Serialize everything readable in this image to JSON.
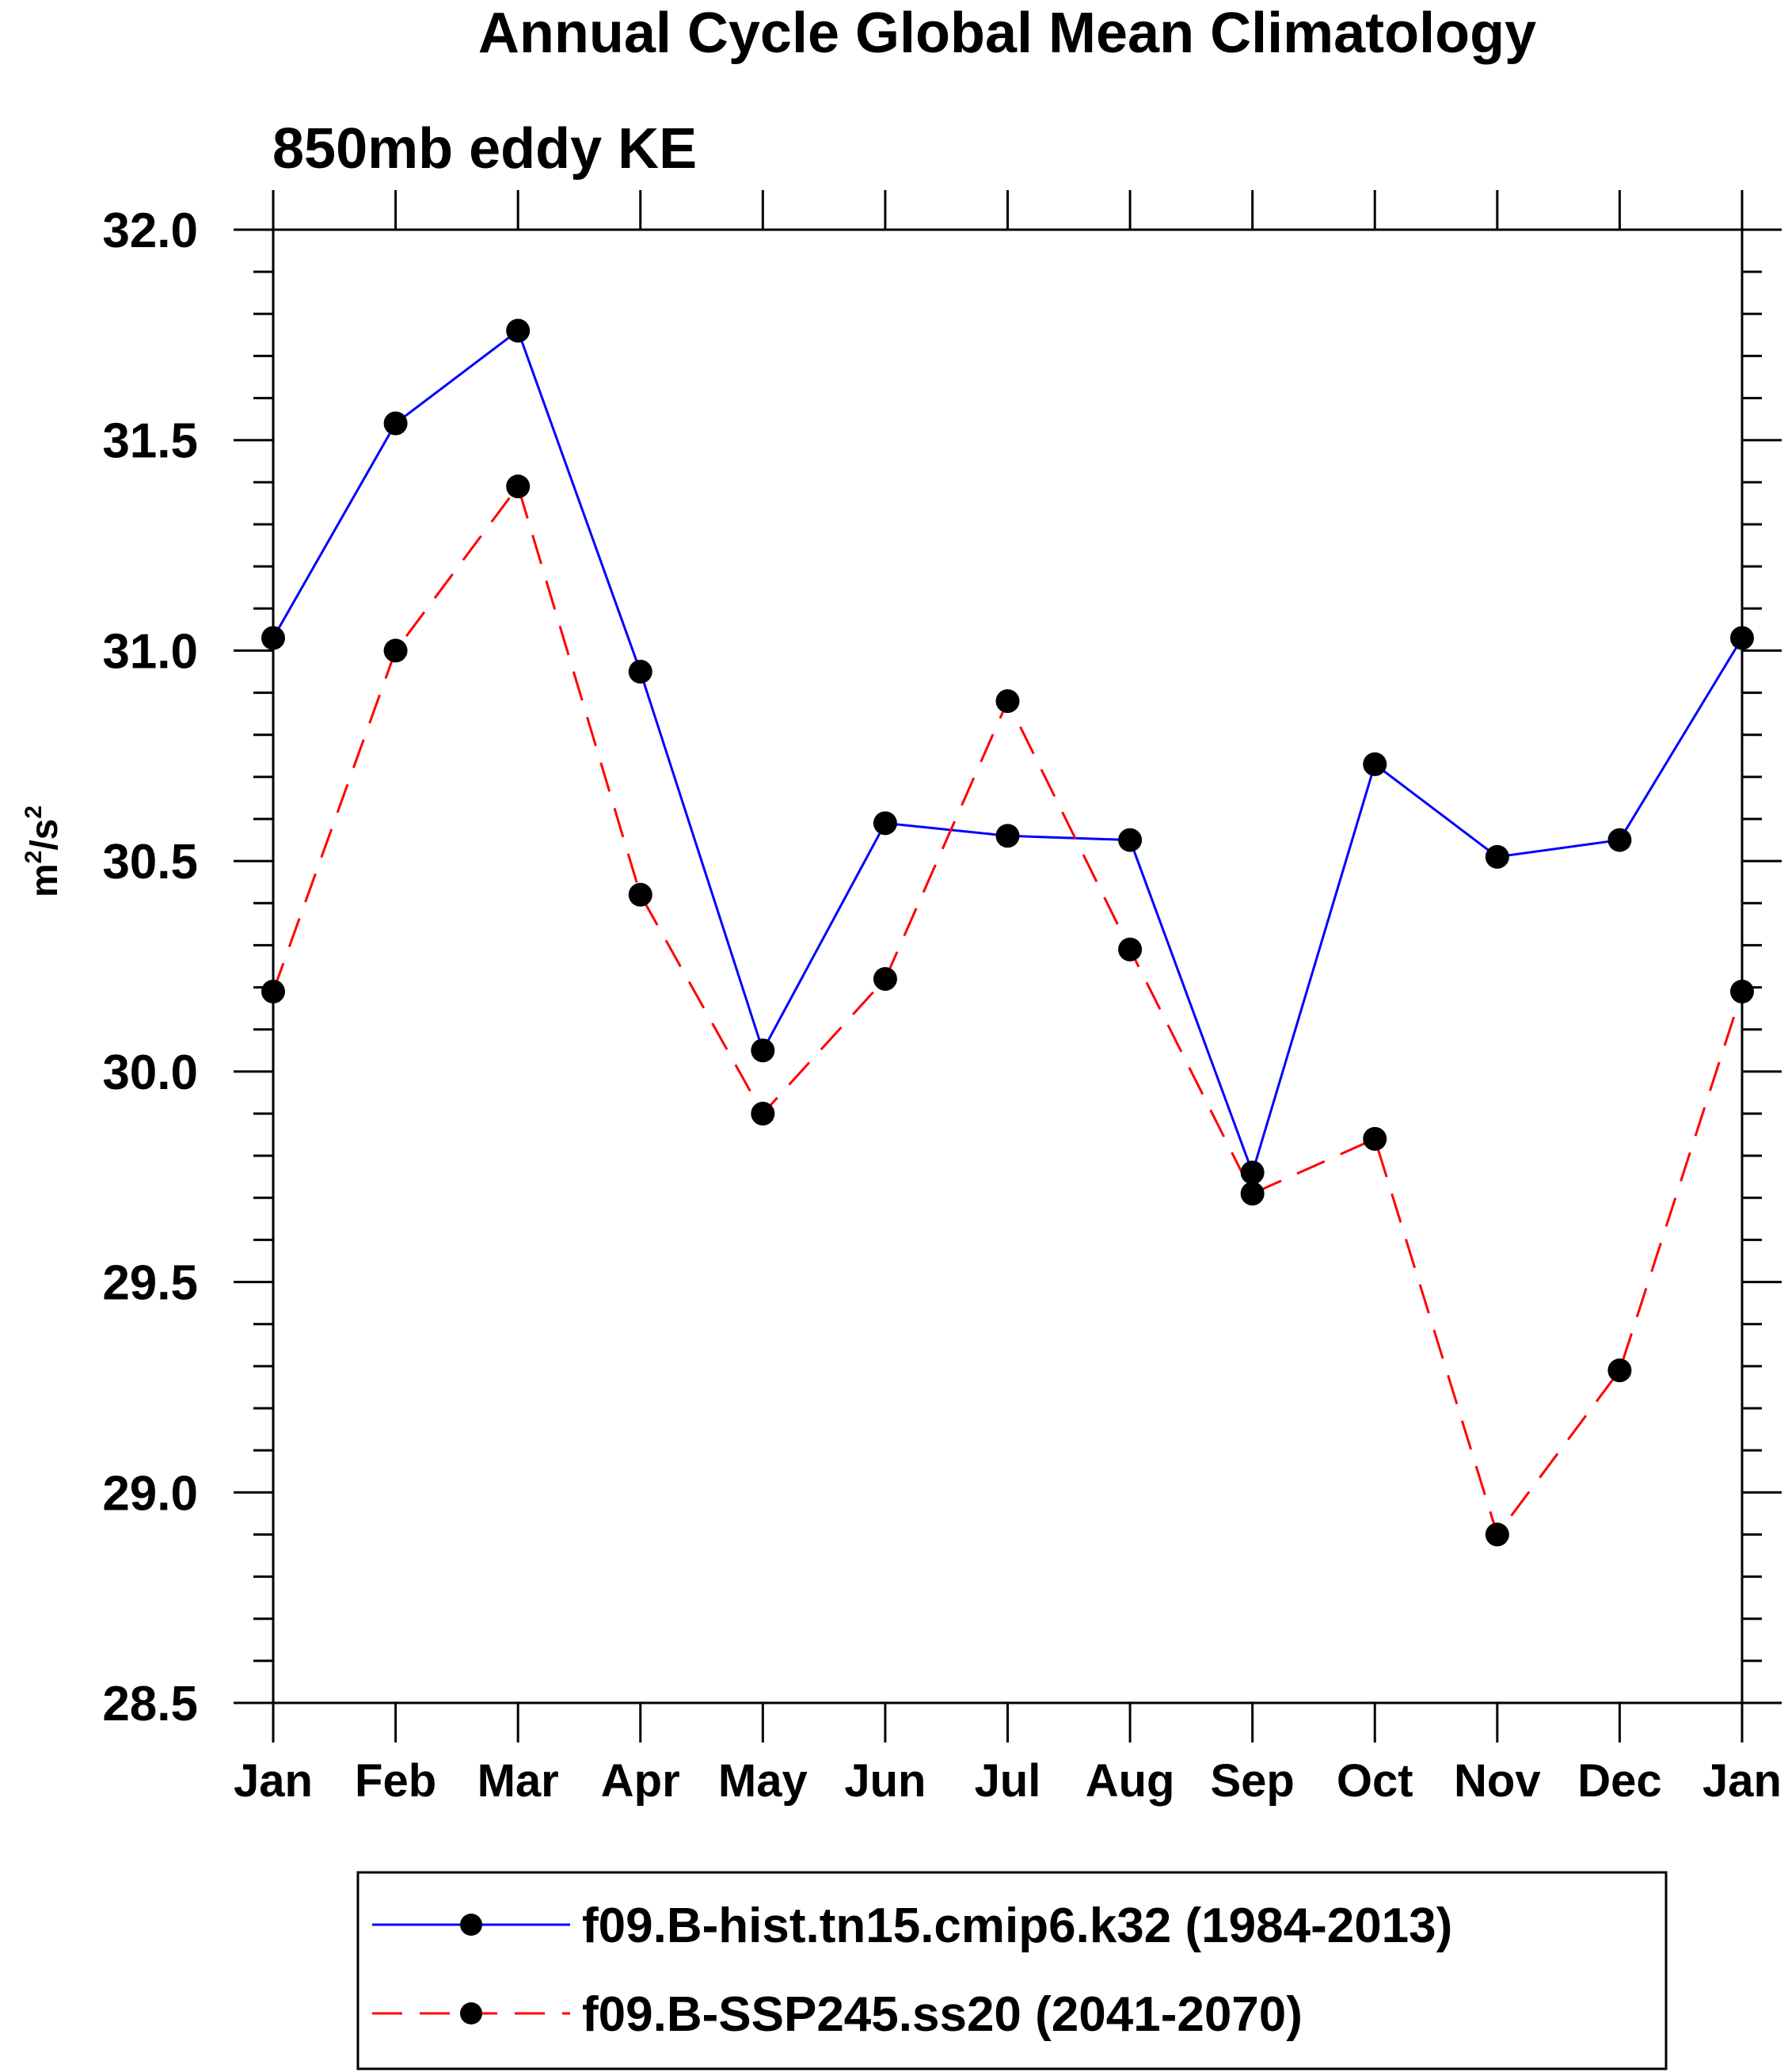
{
  "chart_data": {
    "type": "line",
    "title": "Annual Cycle Global Mean Climatology",
    "subtitle": "850mb eddy KE",
    "ylabel_base": "m",
    "ylabel_sup1": "2",
    "ylabel_mid": "/s",
    "ylabel_sup2": "2",
    "xlabel": "",
    "ylim": [
      28.5,
      32.0
    ],
    "yticks": [
      28.5,
      29.0,
      29.5,
      30.0,
      30.5,
      31.0,
      31.5,
      32.0
    ],
    "ytick_labels": [
      "28.5",
      "29.0",
      "29.5",
      "30.0",
      "30.5",
      "31.0",
      "31.5",
      "32.0"
    ],
    "categories": [
      "Jan",
      "Feb",
      "Mar",
      "Apr",
      "May",
      "Jun",
      "Jul",
      "Aug",
      "Sep",
      "Oct",
      "Nov",
      "Dec",
      "Jan"
    ],
    "grid": false,
    "legend_position": "bottom",
    "series": [
      {
        "name": "f09.B-hist.tn15.cmip6.k32 (1984-2013)",
        "color": "#0000ff",
        "dash": "solid",
        "values": [
          31.03,
          31.54,
          31.76,
          30.95,
          30.05,
          30.59,
          30.56,
          30.55,
          29.76,
          30.73,
          30.51,
          30.55,
          31.03
        ]
      },
      {
        "name": "f09.B-SSP245.ss20 (2041-2070)",
        "color": "#ff0000",
        "dash": "dashed",
        "values": [
          30.19,
          31.0,
          31.39,
          30.42,
          29.9,
          30.22,
          30.88,
          30.29,
          29.71,
          29.84,
          28.9,
          29.29,
          30.19
        ]
      }
    ]
  }
}
